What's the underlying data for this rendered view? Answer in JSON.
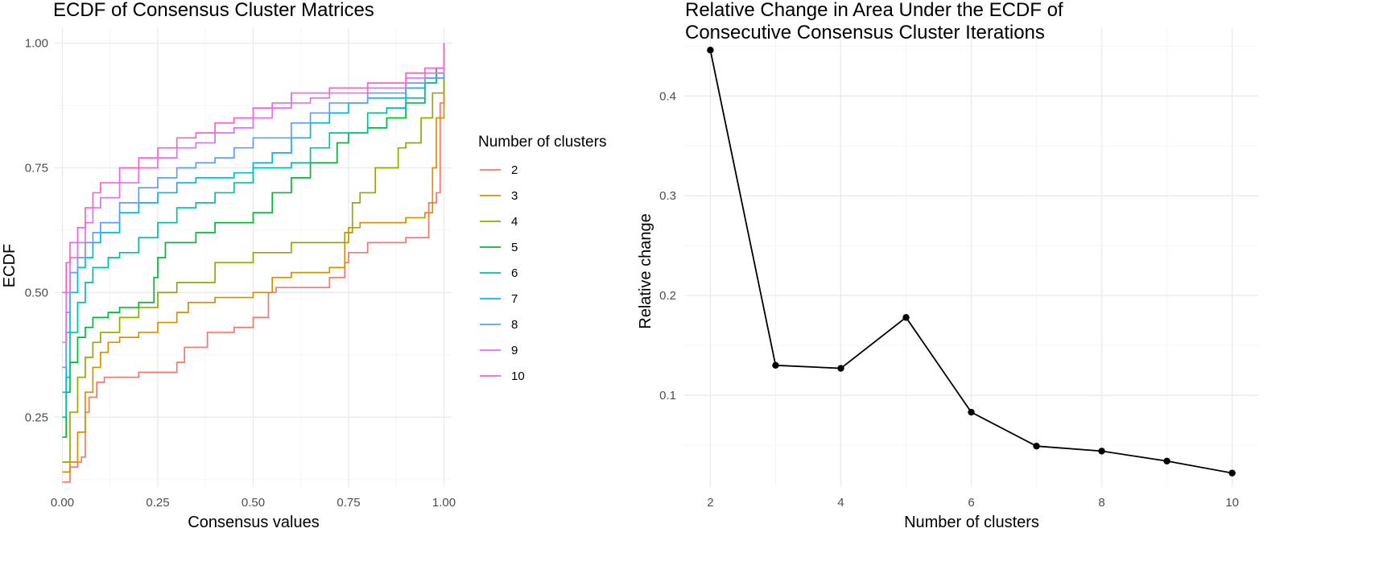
{
  "figure": {
    "background": "#ffffff",
    "grid_major_color": "#ebebeb",
    "grid_minor_color": "#f4f4f4",
    "tick_color": "#4d4d4d"
  },
  "chart_data": [
    {
      "type": "line",
      "title": "ECDF of Consensus Cluster Matrices",
      "xlabel": "Consensus values",
      "ylabel": "ECDF",
      "xlim": [
        -0.02,
        1.02
      ],
      "ylim": [
        0.11,
        1.03
      ],
      "xticks": [
        0,
        0.25,
        0.5,
        0.75,
        1
      ],
      "xtick_labels": [
        "0.00",
        "0.25",
        "0.50",
        "0.75",
        "1.00"
      ],
      "yticks": [
        0.25,
        0.5,
        0.75,
        1
      ],
      "ytick_labels": [
        "0.25",
        "0.50",
        "0.75",
        "1.00"
      ],
      "grid": true,
      "legend": {
        "title": "Number of clusters",
        "placement": "right"
      },
      "series": [
        {
          "name": "2",
          "color": "#F8766D",
          "x": [
            0,
            0.02,
            0.04,
            0.05,
            0.06,
            0.07,
            0.09,
            0.11,
            0.2,
            0.25,
            0.3,
            0.32,
            0.38,
            0.45,
            0.5,
            0.54,
            0.56,
            0.7,
            0.74,
            0.75,
            0.8,
            0.9,
            0.96,
            0.98,
            0.99,
            1
          ],
          "y": [
            0.12,
            0.15,
            0.16,
            0.17,
            0.26,
            0.29,
            0.32,
            0.33,
            0.34,
            0.34,
            0.36,
            0.39,
            0.42,
            0.43,
            0.45,
            0.5,
            0.51,
            0.53,
            0.56,
            0.58,
            0.6,
            0.61,
            0.68,
            0.7,
            0.88,
            1.0
          ]
        },
        {
          "name": "3",
          "color": "#D39200",
          "x": [
            0,
            0.02,
            0.04,
            0.06,
            0.08,
            0.1,
            0.12,
            0.15,
            0.2,
            0.25,
            0.3,
            0.33,
            0.4,
            0.45,
            0.5,
            0.55,
            0.6,
            0.7,
            0.74,
            0.75,
            0.78,
            0.9,
            0.95,
            0.97,
            0.98,
            1
          ],
          "y": [
            0.14,
            0.16,
            0.22,
            0.3,
            0.35,
            0.38,
            0.4,
            0.41,
            0.42,
            0.44,
            0.46,
            0.48,
            0.49,
            0.49,
            0.5,
            0.53,
            0.54,
            0.55,
            0.6,
            0.63,
            0.64,
            0.65,
            0.66,
            0.75,
            0.85,
            1.0
          ]
        },
        {
          "name": "4",
          "color": "#93AA00",
          "x": [
            0,
            0.02,
            0.04,
            0.06,
            0.08,
            0.1,
            0.15,
            0.2,
            0.25,
            0.3,
            0.4,
            0.5,
            0.55,
            0.6,
            0.7,
            0.74,
            0.76,
            0.78,
            0.82,
            0.88,
            0.9,
            0.94,
            0.97,
            1
          ],
          "y": [
            0.16,
            0.26,
            0.33,
            0.37,
            0.4,
            0.42,
            0.45,
            0.47,
            0.5,
            0.52,
            0.56,
            0.58,
            0.58,
            0.6,
            0.6,
            0.62,
            0.68,
            0.7,
            0.75,
            0.79,
            0.8,
            0.85,
            0.9,
            1.0
          ]
        },
        {
          "name": "5",
          "color": "#00BA38",
          "x": [
            0,
            0.01,
            0.02,
            0.04,
            0.06,
            0.08,
            0.12,
            0.15,
            0.2,
            0.24,
            0.25,
            0.27,
            0.35,
            0.4,
            0.5,
            0.55,
            0.6,
            0.65,
            0.72,
            0.75,
            0.8,
            0.85,
            0.9,
            0.95,
            0.98,
            1
          ],
          "y": [
            0.21,
            0.3,
            0.36,
            0.41,
            0.43,
            0.45,
            0.46,
            0.47,
            0.48,
            0.53,
            0.57,
            0.6,
            0.62,
            0.64,
            0.66,
            0.7,
            0.73,
            0.76,
            0.8,
            0.82,
            0.83,
            0.85,
            0.88,
            0.92,
            0.95,
            1.0
          ]
        },
        {
          "name": "6",
          "color": "#00C19F",
          "x": [
            0,
            0.01,
            0.02,
            0.04,
            0.06,
            0.08,
            0.12,
            0.15,
            0.2,
            0.25,
            0.3,
            0.35,
            0.4,
            0.45,
            0.5,
            0.6,
            0.65,
            0.7,
            0.8,
            0.85,
            0.9,
            0.95,
            0.98,
            1
          ],
          "y": [
            0.25,
            0.33,
            0.42,
            0.48,
            0.52,
            0.55,
            0.57,
            0.58,
            0.61,
            0.64,
            0.67,
            0.68,
            0.7,
            0.72,
            0.75,
            0.76,
            0.79,
            0.82,
            0.86,
            0.87,
            0.89,
            0.92,
            0.94,
            1.0
          ]
        },
        {
          "name": "7",
          "color": "#00B9E3",
          "x": [
            0,
            0.01,
            0.02,
            0.04,
            0.06,
            0.08,
            0.1,
            0.15,
            0.2,
            0.25,
            0.3,
            0.35,
            0.45,
            0.5,
            0.55,
            0.6,
            0.65,
            0.7,
            0.75,
            0.8,
            0.9,
            0.95,
            1
          ],
          "y": [
            0.3,
            0.42,
            0.5,
            0.55,
            0.57,
            0.6,
            0.62,
            0.66,
            0.68,
            0.7,
            0.72,
            0.73,
            0.74,
            0.76,
            0.78,
            0.81,
            0.84,
            0.86,
            0.88,
            0.89,
            0.91,
            0.93,
            1.0
          ]
        },
        {
          "name": "8",
          "color": "#619CFF",
          "x": [
            0,
            0.01,
            0.02,
            0.04,
            0.06,
            0.08,
            0.1,
            0.15,
            0.2,
            0.25,
            0.3,
            0.35,
            0.4,
            0.45,
            0.5,
            0.6,
            0.65,
            0.7,
            0.8,
            0.9,
            0.95,
            1
          ],
          "y": [
            0.35,
            0.46,
            0.54,
            0.57,
            0.6,
            0.62,
            0.64,
            0.68,
            0.71,
            0.73,
            0.75,
            0.76,
            0.77,
            0.79,
            0.81,
            0.84,
            0.86,
            0.88,
            0.9,
            0.92,
            0.93,
            1.0
          ]
        },
        {
          "name": "9",
          "color": "#DB72FB",
          "x": [
            0,
            0.01,
            0.02,
            0.04,
            0.06,
            0.08,
            0.1,
            0.15,
            0.2,
            0.25,
            0.3,
            0.35,
            0.4,
            0.45,
            0.5,
            0.55,
            0.6,
            0.65,
            0.7,
            0.8,
            0.9,
            0.95,
            1
          ],
          "y": [
            0.4,
            0.5,
            0.57,
            0.6,
            0.64,
            0.67,
            0.69,
            0.72,
            0.75,
            0.77,
            0.79,
            0.8,
            0.82,
            0.83,
            0.85,
            0.87,
            0.88,
            0.89,
            0.9,
            0.91,
            0.93,
            0.94,
            1.0
          ]
        },
        {
          "name": "10",
          "color": "#FF61C3",
          "x": [
            0,
            0.01,
            0.02,
            0.04,
            0.06,
            0.08,
            0.1,
            0.15,
            0.2,
            0.25,
            0.3,
            0.35,
            0.4,
            0.45,
            0.5,
            0.55,
            0.6,
            0.7,
            0.8,
            0.9,
            0.95,
            1
          ],
          "y": [
            0.5,
            0.56,
            0.6,
            0.63,
            0.67,
            0.7,
            0.72,
            0.75,
            0.77,
            0.79,
            0.81,
            0.82,
            0.84,
            0.85,
            0.87,
            0.88,
            0.9,
            0.91,
            0.92,
            0.94,
            0.95,
            1.0
          ]
        }
      ]
    },
    {
      "type": "line",
      "title": "Relative Change in Area Under the ECDF of\nConsecutive Consensus Cluster Iterations",
      "xlabel": "Number of clusters",
      "ylabel": "Relative change",
      "xlim": [
        1.6,
        10.4
      ],
      "ylim": [
        0.008,
        0.468
      ],
      "xticks": [
        2,
        4,
        6,
        8,
        10
      ],
      "xtick_labels": [
        "2",
        "4",
        "6",
        "8",
        "10"
      ],
      "yticks": [
        0.1,
        0.2,
        0.3,
        0.4
      ],
      "ytick_labels": [
        "0.1",
        "0.2",
        "0.3",
        "0.4"
      ],
      "grid": true,
      "series": [
        {
          "color": "#000000",
          "markers": true,
          "x": [
            2,
            3,
            4,
            5,
            6,
            7,
            8,
            9,
            10
          ],
          "y": [
            0.446,
            0.13,
            0.127,
            0.178,
            0.083,
            0.049,
            0.044,
            0.034,
            0.022
          ]
        }
      ]
    }
  ]
}
